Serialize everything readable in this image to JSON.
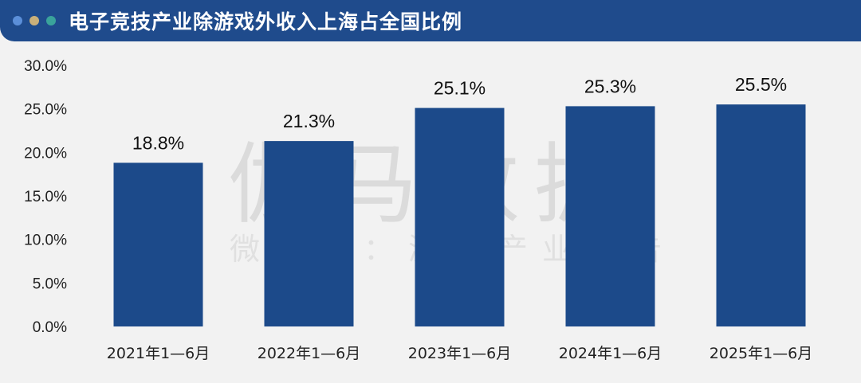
{
  "header": {
    "title": "电子竞技产业除游戏外收入上海占全国比例",
    "dots": [
      "#5b8fd9",
      "#c9b07a",
      "#3aa39b"
    ]
  },
  "watermark": {
    "main": "伽马数据",
    "sub": "微信号：游戏产业报告"
  },
  "colors": {
    "bar": "#1c4a8a"
  },
  "chart_data": {
    "type": "bar",
    "title": "电子竞技产业除游戏外收入上海占全国比例",
    "categories": [
      "2021年1—6月",
      "2022年1—6月",
      "2023年1—6月",
      "2024年1—6月",
      "2025年1—6月"
    ],
    "values": [
      18.8,
      21.3,
      25.1,
      25.3,
      25.5
    ],
    "data_labels": [
      "18.8%",
      "21.3%",
      "25.1%",
      "25.3%",
      "25.5%"
    ],
    "yticks": [
      0,
      5,
      10,
      15,
      20,
      25,
      30
    ],
    "ytick_labels": [
      "0.0%",
      "5.0%",
      "10.0%",
      "15.0%",
      "20.0%",
      "25.0%",
      "30.0%"
    ],
    "ylim": [
      0,
      30
    ],
    "grid": false,
    "legend": "none"
  }
}
